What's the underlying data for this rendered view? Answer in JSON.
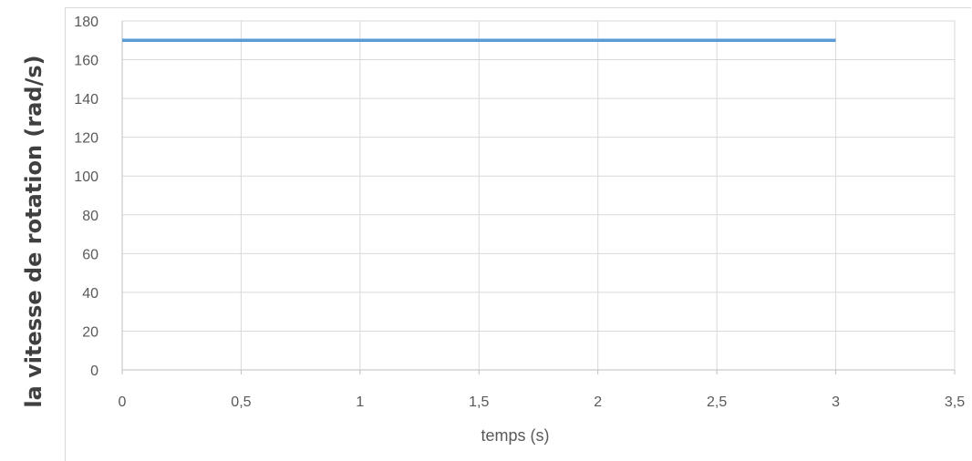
{
  "chart_data": {
    "type": "line",
    "title": "",
    "xlabel": "temps (s)",
    "ylabel": "la vitesse de rotation (rad/s)",
    "xlim": [
      0,
      3.5
    ],
    "ylim": [
      0,
      180
    ],
    "x_ticks": [
      0,
      0.5,
      1,
      1.5,
      2,
      2.5,
      3,
      3.5
    ],
    "x_tick_labels": [
      "0",
      "0,5",
      "1",
      "1,5",
      "2",
      "2,5",
      "3",
      "3,5"
    ],
    "y_ticks": [
      0,
      20,
      40,
      60,
      80,
      100,
      120,
      140,
      160,
      180
    ],
    "y_tick_labels": [
      "0",
      "20",
      "40",
      "60",
      "80",
      "100",
      "120",
      "140",
      "160",
      "180"
    ],
    "grid": true,
    "legend": "none",
    "series": [
      {
        "color": "#5b9bd5",
        "x": [
          0,
          3
        ],
        "y": [
          170,
          170
        ]
      }
    ]
  }
}
